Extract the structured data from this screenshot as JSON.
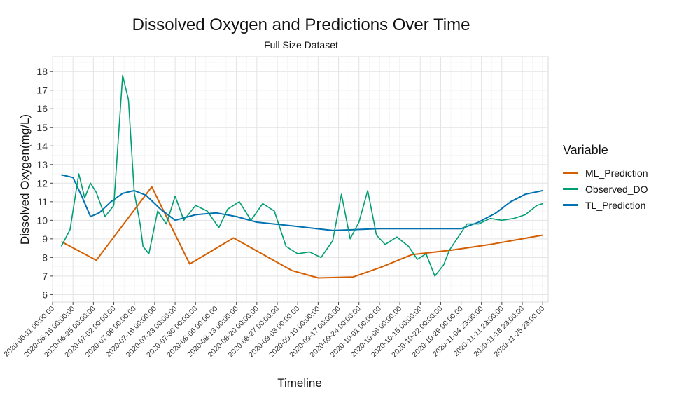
{
  "chart_data": {
    "type": "line",
    "title": "Dissolved Oxygen and Predictions Over Time",
    "subtitle": "Full Size Dataset",
    "xlabel": "Timeline",
    "ylabel": "Dissolved Oxygen(mg/L)",
    "ylim": [
      5.6,
      18.8
    ],
    "yticks": [
      6,
      7,
      8,
      9,
      10,
      11,
      12,
      13,
      14,
      15,
      16,
      17,
      18
    ],
    "xlim": [
      "2020-06-11 00:00:00",
      "2020-11-27 20:00:00"
    ],
    "xticks": [
      "2020-06-11 00:00:00",
      "2020-06-18 00:00:00",
      "2020-06-25 00:00:00",
      "2020-07-02 00:00:00",
      "2020-07-09 00:00:00",
      "2020-07-16 00:00:00",
      "2020-07-23 00:00:00",
      "2020-07-30 00:00:00",
      "2020-08-06 00:00:00",
      "2020-08-13 00:00:00",
      "2020-08-20 00:00:00",
      "2020-08-27 00:00:00",
      "2020-09-03 00:00:00",
      "2020-09-10 00:00:00",
      "2020-09-17 00:00:00",
      "2020-09-24 00:00:00",
      "2020-10-01 00:00:00",
      "2020-10-08 00:00:00",
      "2020-10-15 00:00:00",
      "2020-10-22 00:00:00",
      "2020-10-29 00:00:00",
      "2020-11-04 23:00:00",
      "2020-11-11 23:00:00",
      "2020-11-18 23:00:00",
      "2020-11-25 23:00:00"
    ],
    "grid": true,
    "legend": {
      "title": "Variable",
      "position": "right"
    },
    "series": [
      {
        "name": "ML_Prediction",
        "color": "#D55E00",
        "x": [
          "2020-06-14",
          "2020-06-26",
          "2020-07-15",
          "2020-07-28",
          "2020-08-12",
          "2020-09-01",
          "2020-09-10",
          "2020-09-22",
          "2020-10-02",
          "2020-10-12",
          "2020-10-26",
          "2020-11-08",
          "2020-11-26"
        ],
        "values": [
          8.85,
          7.85,
          11.8,
          7.65,
          9.05,
          7.3,
          6.9,
          6.95,
          7.5,
          8.15,
          8.4,
          8.7,
          9.2
        ]
      },
      {
        "name": "Observed_DO",
        "color": "#009E73",
        "x": [
          "2020-06-14",
          "2020-06-17",
          "2020-06-20",
          "2020-06-22",
          "2020-06-24",
          "2020-06-26",
          "2020-06-29",
          "2020-07-02",
          "2020-07-05",
          "2020-07-07",
          "2020-07-09",
          "2020-07-11",
          "2020-07-12",
          "2020-07-14",
          "2020-07-17",
          "2020-07-20",
          "2020-07-23",
          "2020-07-26",
          "2020-07-30",
          "2020-08-03",
          "2020-08-07",
          "2020-08-10",
          "2020-08-14",
          "2020-08-18",
          "2020-08-22",
          "2020-08-26",
          "2020-08-30",
          "2020-09-03",
          "2020-09-07",
          "2020-09-11",
          "2020-09-15",
          "2020-09-18",
          "2020-09-21",
          "2020-09-24",
          "2020-09-27",
          "2020-09-30",
          "2020-10-03",
          "2020-10-07",
          "2020-10-11",
          "2020-10-14",
          "2020-10-17",
          "2020-10-20",
          "2020-10-23",
          "2020-10-25",
          "2020-10-28",
          "2020-10-31",
          "2020-11-04",
          "2020-11-08",
          "2020-11-12",
          "2020-11-16",
          "2020-11-20",
          "2020-11-24",
          "2020-11-26"
        ],
        "values": [
          8.6,
          9.5,
          12.5,
          11.2,
          12.0,
          11.5,
          10.2,
          10.8,
          17.8,
          16.5,
          11.5,
          9.8,
          8.6,
          8.2,
          10.5,
          9.8,
          11.3,
          10.0,
          10.8,
          10.5,
          9.6,
          10.6,
          11.0,
          10.0,
          10.9,
          10.5,
          8.6,
          8.2,
          8.3,
          8.0,
          8.9,
          11.4,
          9.0,
          9.9,
          11.6,
          9.2,
          8.7,
          9.1,
          8.6,
          7.9,
          8.2,
          7.0,
          7.6,
          8.4,
          9.1,
          9.8,
          9.8,
          10.1,
          10.0,
          10.1,
          10.3,
          10.8,
          10.9
        ]
      },
      {
        "name": "TL_Prediction",
        "color": "#0072B2",
        "x": [
          "2020-06-14",
          "2020-06-18",
          "2020-06-21",
          "2020-06-24",
          "2020-06-27",
          "2020-07-01",
          "2020-07-05",
          "2020-07-09",
          "2020-07-13",
          "2020-07-18",
          "2020-07-23",
          "2020-07-30",
          "2020-08-06",
          "2020-08-13",
          "2020-08-20",
          "2020-09-01",
          "2020-09-15",
          "2020-10-01",
          "2020-10-15",
          "2020-10-29",
          "2020-11-04",
          "2020-11-10",
          "2020-11-15",
          "2020-11-20",
          "2020-11-26"
        ],
        "values": [
          12.45,
          12.3,
          11.3,
          10.2,
          10.4,
          11.0,
          11.45,
          11.6,
          11.35,
          10.6,
          10.0,
          10.3,
          10.4,
          10.2,
          9.9,
          9.7,
          9.45,
          9.55,
          9.55,
          9.55,
          9.9,
          10.4,
          11.0,
          11.4,
          11.6
        ]
      }
    ]
  }
}
